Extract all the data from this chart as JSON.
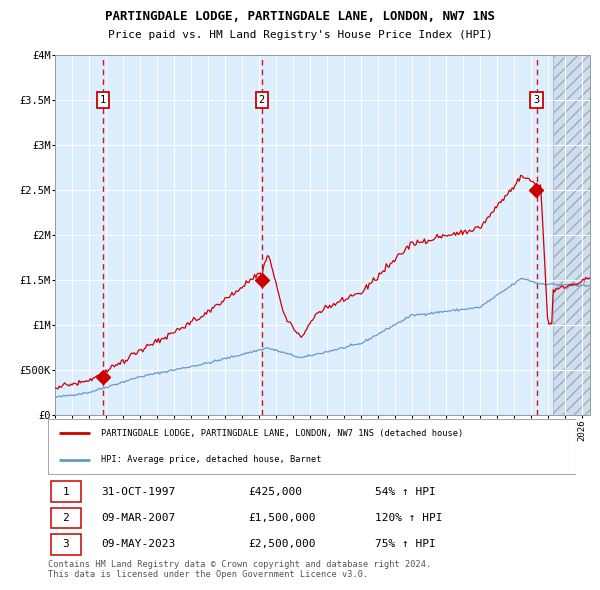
{
  "title": "PARTINGDALE LODGE, PARTINGDALE LANE, LONDON, NW7 1NS",
  "subtitle": "Price paid vs. HM Land Registry's House Price Index (HPI)",
  "legend_label_red": "PARTINGDALE LODGE, PARTINGDALE LANE, LONDON, NW7 1NS (detached house)",
  "legend_label_blue": "HPI: Average price, detached house, Barnet",
  "table_rows": [
    {
      "num": 1,
      "date": "31-OCT-1997",
      "price": "£425,000",
      "pct": "54% ↑ HPI"
    },
    {
      "num": 2,
      "date": "09-MAR-2007",
      "price": "£1,500,000",
      "pct": "120% ↑ HPI"
    },
    {
      "num": 3,
      "date": "09-MAY-2023",
      "price": "£2,500,000",
      "pct": "75% ↑ HPI"
    }
  ],
  "footer": "Contains HM Land Registry data © Crown copyright and database right 2024.\nThis data is licensed under the Open Government Licence v3.0.",
  "sale_dates_num": [
    1997.83,
    2007.18,
    2023.35
  ],
  "sale_prices": [
    425000,
    1500000,
    2500000
  ],
  "ylim": [
    0,
    4000000
  ],
  "xlim_start": 1995.0,
  "xlim_end": 2026.5,
  "hatch_start": 2024.35,
  "red_color": "#cc0000",
  "blue_color": "#6699cc",
  "bg_color": "#ddeeff",
  "grid_color": "#ffffff",
  "vline_color": "#cc0000"
}
